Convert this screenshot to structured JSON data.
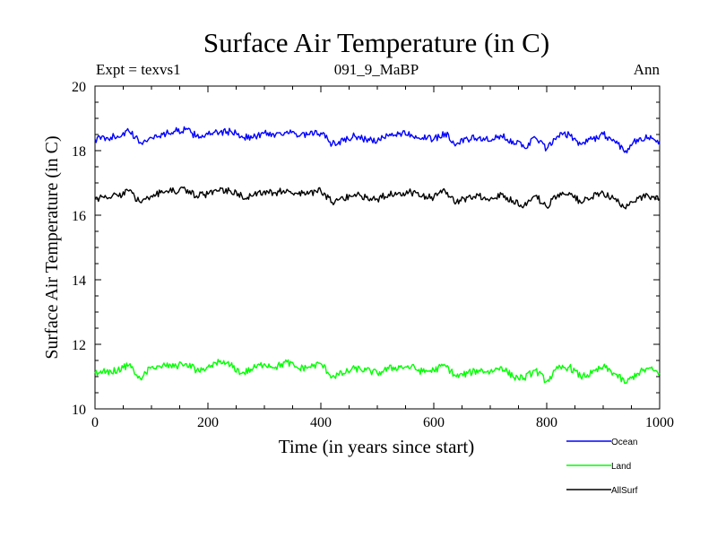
{
  "chart_data": {
    "type": "line",
    "title": "Surface Air Temperature (in C)",
    "subtitle_left": "Expt = texvs1",
    "subtitle_center": "091_9_MaBP",
    "subtitle_right": "Ann",
    "xlabel": "Time (in years since start)",
    "ylabel": "Surface Air Temperature (in C)",
    "xlim": [
      0,
      1000
    ],
    "ylim": [
      10,
      20
    ],
    "xticks": [
      0,
      200,
      400,
      600,
      800,
      1000
    ],
    "yticks": [
      10,
      12,
      14,
      16,
      18,
      20
    ],
    "grid": false,
    "legend_position": "below-right",
    "series": [
      {
        "name": "Ocean",
        "color": "#0000ff",
        "x": [
          0,
          20,
          40,
          60,
          80,
          100,
          120,
          140,
          160,
          180,
          200,
          220,
          240,
          260,
          280,
          300,
          320,
          340,
          360,
          380,
          400,
          420,
          440,
          460,
          480,
          500,
          520,
          540,
          560,
          580,
          600,
          620,
          640,
          660,
          680,
          700,
          720,
          740,
          760,
          780,
          800,
          820,
          840,
          860,
          880,
          900,
          920,
          940,
          960,
          980,
          1000
        ],
        "values": [
          18.35,
          18.4,
          18.45,
          18.6,
          18.25,
          18.4,
          18.5,
          18.6,
          18.65,
          18.45,
          18.5,
          18.55,
          18.6,
          18.45,
          18.4,
          18.55,
          18.5,
          18.6,
          18.45,
          18.5,
          18.55,
          18.2,
          18.3,
          18.45,
          18.35,
          18.3,
          18.45,
          18.55,
          18.5,
          18.4,
          18.35,
          18.55,
          18.2,
          18.35,
          18.4,
          18.3,
          18.45,
          18.3,
          18.1,
          18.4,
          18.05,
          18.45,
          18.5,
          18.2,
          18.35,
          18.5,
          18.3,
          18.0,
          18.35,
          18.4,
          18.3
        ]
      },
      {
        "name": "Land",
        "color": "#00ff00",
        "x": [
          0,
          20,
          40,
          60,
          80,
          100,
          120,
          140,
          160,
          180,
          200,
          220,
          240,
          260,
          280,
          300,
          320,
          340,
          360,
          380,
          400,
          420,
          440,
          460,
          480,
          500,
          520,
          540,
          560,
          580,
          600,
          620,
          640,
          660,
          680,
          700,
          720,
          740,
          760,
          780,
          800,
          820,
          840,
          860,
          880,
          900,
          920,
          940,
          960,
          980,
          1000
        ],
        "values": [
          11.1,
          11.15,
          11.2,
          11.35,
          10.95,
          11.3,
          11.35,
          11.3,
          11.4,
          11.2,
          11.3,
          11.45,
          11.35,
          11.1,
          11.25,
          11.4,
          11.3,
          11.45,
          11.25,
          11.3,
          11.4,
          11.0,
          11.1,
          11.25,
          11.2,
          11.1,
          11.25,
          11.3,
          11.3,
          11.15,
          11.2,
          11.35,
          11.0,
          11.1,
          11.2,
          11.15,
          11.3,
          11.0,
          10.95,
          11.2,
          10.85,
          11.25,
          11.3,
          11.0,
          11.1,
          11.3,
          11.1,
          10.8,
          11.1,
          11.25,
          11.1
        ]
      },
      {
        "name": "AllSurf",
        "color": "#000000",
        "x": [
          0,
          20,
          40,
          60,
          80,
          100,
          120,
          140,
          160,
          180,
          200,
          220,
          240,
          260,
          280,
          300,
          320,
          340,
          360,
          380,
          400,
          420,
          440,
          460,
          480,
          500,
          520,
          540,
          560,
          580,
          600,
          620,
          640,
          660,
          680,
          700,
          720,
          740,
          760,
          780,
          800,
          820,
          840,
          860,
          880,
          900,
          920,
          940,
          960,
          980,
          1000
        ],
        "values": [
          16.5,
          16.55,
          16.6,
          16.75,
          16.4,
          16.6,
          16.7,
          16.75,
          16.8,
          16.6,
          16.65,
          16.75,
          16.75,
          16.6,
          16.6,
          16.75,
          16.7,
          16.8,
          16.65,
          16.7,
          16.75,
          16.4,
          16.5,
          16.65,
          16.55,
          16.5,
          16.65,
          16.7,
          16.7,
          16.6,
          16.55,
          16.75,
          16.4,
          16.55,
          16.6,
          16.5,
          16.65,
          16.45,
          16.3,
          16.6,
          16.25,
          16.65,
          16.7,
          16.4,
          16.55,
          16.7,
          16.5,
          16.2,
          16.55,
          16.6,
          16.5
        ]
      }
    ]
  }
}
